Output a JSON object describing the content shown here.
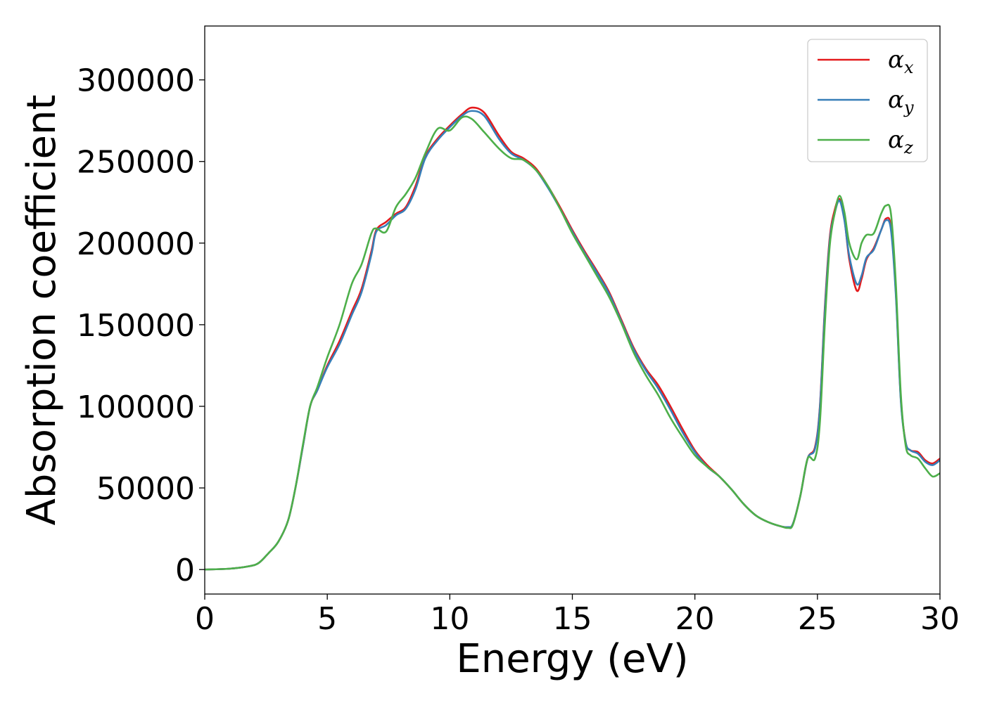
{
  "chart_data": {
    "type": "line",
    "title": "",
    "xlabel": "Energy (eV)",
    "ylabel": "Absorption coefficient",
    "xlim": [
      0,
      30
    ],
    "ylim": [
      -15000,
      333000
    ],
    "xticks": [
      0,
      5,
      10,
      15,
      20,
      25,
      30
    ],
    "yticks": [
      0,
      50000,
      100000,
      150000,
      200000,
      250000,
      300000
    ],
    "grid": false,
    "legend_position": "top-right",
    "series": [
      {
        "name": "α",
        "subscript": "x",
        "color": "#e41a1c",
        "x": [
          0,
          1,
          1.8,
          2.2,
          2.6,
          3,
          3.4,
          3.7,
          4,
          4.3,
          4.6,
          5,
          5.5,
          6,
          6.4,
          6.8,
          7,
          7.4,
          7.8,
          8.2,
          8.6,
          9,
          9.5,
          10,
          10.5,
          10.9,
          11.4,
          12,
          12.5,
          13,
          13.5,
          14,
          14.5,
          15,
          15.5,
          16,
          16.5,
          17,
          17.5,
          18,
          18.5,
          19,
          19.5,
          20,
          20.5,
          21,
          21.5,
          22,
          22.5,
          23,
          23.5,
          23.8,
          24,
          24.3,
          24.6,
          24.9,
          25.1,
          25.3,
          25.5,
          25.7,
          25.9,
          26.1,
          26.3,
          26.6,
          26.8,
          27,
          27.3,
          27.6,
          27.8,
          28,
          28.2,
          28.4,
          28.6,
          28.8,
          29.1,
          29.4,
          29.7,
          30
        ],
        "y": [
          0,
          500,
          2000,
          4000,
          10000,
          17000,
          30000,
          50000,
          75000,
          100000,
          110000,
          125000,
          140000,
          158000,
          172000,
          195000,
          208000,
          213000,
          218000,
          222000,
          235000,
          253000,
          264000,
          272000,
          279000,
          283000,
          280000,
          266000,
          256000,
          252000,
          246000,
          235000,
          222000,
          208000,
          195000,
          183000,
          170000,
          153000,
          136000,
          123000,
          113000,
          100000,
          86000,
          73000,
          64000,
          57000,
          49000,
          40000,
          33000,
          29000,
          26500,
          26000,
          28000,
          45000,
          68000,
          75000,
          100000,
          160000,
          203000,
          220000,
          227000,
          215000,
          190000,
          171000,
          178000,
          190000,
          197000,
          208000,
          215000,
          210000,
          170000,
          105000,
          78000,
          73000,
          72000,
          67000,
          65000,
          68000
        ]
      },
      {
        "name": "α",
        "subscript": "y",
        "color": "#377eb8",
        "x": [
          0,
          1,
          1.8,
          2.2,
          2.6,
          3,
          3.4,
          3.7,
          4,
          4.3,
          4.6,
          5,
          5.5,
          6,
          6.4,
          6.8,
          7,
          7.4,
          7.8,
          8.2,
          8.6,
          9,
          9.5,
          10,
          10.5,
          10.9,
          11.4,
          12,
          12.5,
          13,
          13.5,
          14,
          14.5,
          15,
          15.5,
          16,
          16.5,
          17,
          17.5,
          18,
          18.5,
          19,
          19.5,
          20,
          20.5,
          21,
          21.5,
          22,
          22.5,
          23,
          23.5,
          23.8,
          24,
          24.3,
          24.6,
          24.9,
          25.1,
          25.3,
          25.5,
          25.7,
          25.9,
          26.1,
          26.3,
          26.6,
          26.8,
          27,
          27.3,
          27.6,
          27.8,
          28,
          28.2,
          28.4,
          28.6,
          28.8,
          29.1,
          29.4,
          29.7,
          30
        ],
        "y": [
          0,
          500,
          2000,
          4000,
          10000,
          17000,
          30000,
          50000,
          75000,
          100000,
          110000,
          124000,
          138000,
          156000,
          170000,
          193000,
          207000,
          211000,
          217000,
          221000,
          233000,
          252000,
          263000,
          271000,
          278000,
          281000,
          278000,
          264000,
          255000,
          251000,
          245000,
          234000,
          221000,
          207000,
          194000,
          182000,
          169000,
          152000,
          135000,
          122000,
          111000,
          98000,
          84000,
          72000,
          63000,
          57000,
          49000,
          40000,
          33000,
          29000,
          26500,
          26000,
          28000,
          45000,
          68000,
          74000,
          99000,
          158000,
          201000,
          218000,
          226000,
          214000,
          192000,
          175000,
          180000,
          191000,
          196000,
          208000,
          214000,
          208000,
          168000,
          104000,
          78000,
          73000,
          71000,
          66000,
          64000,
          67000
        ]
      },
      {
        "name": "α",
        "subscript": "z",
        "color": "#4daf4a",
        "x": [
          0,
          1,
          1.8,
          2.2,
          2.6,
          3,
          3.4,
          3.7,
          4,
          4.3,
          4.6,
          5,
          5.5,
          6,
          6.4,
          6.8,
          7,
          7.4,
          7.8,
          8.2,
          8.6,
          9,
          9.5,
          10,
          10.5,
          10.9,
          11.4,
          12,
          12.5,
          13,
          13.5,
          14,
          14.5,
          15,
          15.5,
          16,
          16.5,
          17,
          17.5,
          18,
          18.5,
          19,
          19.5,
          20,
          20.5,
          21,
          21.5,
          22,
          22.5,
          23,
          23.5,
          23.8,
          24,
          24.3,
          24.6,
          24.9,
          25.1,
          25.3,
          25.5,
          25.7,
          25.9,
          26.1,
          26.3,
          26.6,
          26.8,
          27,
          27.3,
          27.6,
          27.8,
          28,
          28.2,
          28.4,
          28.6,
          28.8,
          29.1,
          29.4,
          29.7,
          30
        ],
        "y": [
          0,
          500,
          2000,
          4000,
          10000,
          17000,
          30000,
          50000,
          76000,
          100000,
          112000,
          130000,
          150000,
          175000,
          187000,
          206000,
          209000,
          207000,
          222000,
          230000,
          240000,
          255000,
          270000,
          269000,
          277000,
          276000,
          268000,
          258000,
          252000,
          251000,
          245000,
          235000,
          221000,
          206000,
          193000,
          180000,
          167000,
          151000,
          133000,
          119000,
          107000,
          93000,
          81000,
          70000,
          63000,
          57000,
          49000,
          40000,
          33000,
          29000,
          26500,
          25500,
          27500,
          45000,
          68000,
          68000,
          90000,
          150000,
          198000,
          218000,
          229000,
          219000,
          200000,
          190000,
          200000,
          205000,
          206000,
          218000,
          223000,
          218000,
          175000,
          108000,
          76000,
          70000,
          68000,
          62000,
          57000,
          59000
        ]
      }
    ]
  }
}
